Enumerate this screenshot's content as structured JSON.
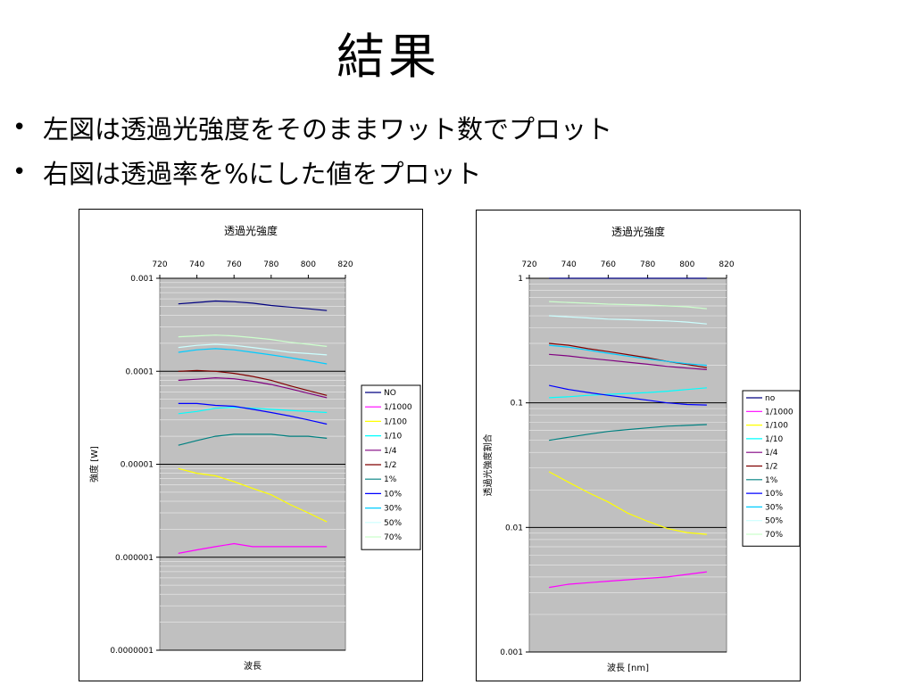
{
  "slide": {
    "title": "結果",
    "bullets": [
      "左図は透過光強度をそのままワット数でプロット",
      "右図は透過率を%にした値をプロット"
    ]
  },
  "colors": {
    "plot_bg": "#c0c0c0",
    "gridline_minor": "#e4e4e4",
    "gridline_major": "#000000",
    "series": {
      "NO": "#000080",
      "1/1000": "#ff00ff",
      "1/100": "#ffff00",
      "1/10": "#00ffff",
      "1/4": "#800080",
      "1/2": "#800000",
      "1%": "#008080",
      "10%": "#0000ff",
      "30%": "#00ccff",
      "50%": "#ccffff",
      "70%": "#ccffcc"
    }
  },
  "chart_data": [
    {
      "type": "line",
      "title": "透過光強度",
      "xlabel": "波長",
      "ylabel": "強度 [W]",
      "x_position": "top",
      "xlim": [
        720,
        820
      ],
      "xticks": [
        "720",
        "740",
        "760",
        "780",
        "800",
        "820"
      ],
      "y_scale": "log",
      "ylim": [
        1e-07,
        0.001
      ],
      "yticks": [
        "0.001",
        "0.0001",
        "0.00001",
        "0.000001",
        "0.0000001"
      ],
      "grid": true,
      "legend": "right",
      "series": [
        {
          "name": "NO",
          "x": [
            730,
            740,
            750,
            760,
            770,
            780,
            790,
            800,
            810
          ],
          "values": [
            0.00053,
            0.00055,
            0.00057,
            0.00056,
            0.00054,
            0.00051,
            0.00049,
            0.00047,
            0.00045
          ]
        },
        {
          "name": "1/1000",
          "x": [
            730,
            740,
            750,
            760,
            770,
            780,
            790,
            800,
            810
          ],
          "values": [
            1.1e-06,
            1.2e-06,
            1.3e-06,
            1.4e-06,
            1.3e-06,
            1.3e-06,
            1.3e-06,
            1.3e-06,
            1.3e-06
          ]
        },
        {
          "name": "1/100",
          "x": [
            730,
            740,
            750,
            760,
            770,
            780,
            790,
            800,
            810
          ],
          "values": [
            9e-06,
            8e-06,
            7.5e-06,
            6.5e-06,
            5.5e-06,
            4.7e-06,
            3.7e-06,
            3e-06,
            2.4e-06
          ]
        },
        {
          "name": "1/10",
          "x": [
            730,
            740,
            750,
            760,
            770,
            780,
            790,
            800,
            810
          ],
          "values": [
            3.5e-05,
            3.7e-05,
            4e-05,
            4.1e-05,
            4e-05,
            3.9e-05,
            3.8e-05,
            3.7e-05,
            3.6e-05
          ]
        },
        {
          "name": "1/4",
          "x": [
            730,
            740,
            750,
            760,
            770,
            780,
            790,
            800,
            810
          ],
          "values": [
            8e-05,
            8.2e-05,
            8.5e-05,
            8.3e-05,
            7.8e-05,
            7.2e-05,
            6.5e-05,
            5.8e-05,
            5.2e-05
          ]
        },
        {
          "name": "1/2",
          "x": [
            730,
            740,
            750,
            760,
            770,
            780,
            790,
            800,
            810
          ],
          "values": [
            0.0001,
            0.000102,
            0.0001,
            9.5e-05,
            8.8e-05,
            8e-05,
            7e-05,
            6.2e-05,
            5.5e-05
          ]
        },
        {
          "name": "1%",
          "x": [
            730,
            740,
            750,
            760,
            770,
            780,
            790,
            800,
            810
          ],
          "values": [
            1.6e-05,
            1.8e-05,
            2e-05,
            2.1e-05,
            2.1e-05,
            2.1e-05,
            2e-05,
            2e-05,
            1.9e-05
          ]
        },
        {
          "name": "10%",
          "x": [
            730,
            740,
            750,
            760,
            770,
            780,
            790,
            800,
            810
          ],
          "values": [
            4.5e-05,
            4.5e-05,
            4.3e-05,
            4.2e-05,
            3.9e-05,
            3.6e-05,
            3.3e-05,
            3e-05,
            2.7e-05
          ]
        },
        {
          "name": "30%",
          "x": [
            730,
            740,
            750,
            760,
            770,
            780,
            790,
            800,
            810
          ],
          "values": [
            0.00016,
            0.00017,
            0.000175,
            0.00017,
            0.00016,
            0.00015,
            0.00014,
            0.00013,
            0.00012
          ]
        },
        {
          "name": "50%",
          "x": [
            730,
            740,
            750,
            760,
            770,
            780,
            790,
            800,
            810
          ],
          "values": [
            0.00018,
            0.00019,
            0.000195,
            0.00019,
            0.00018,
            0.00017,
            0.00016,
            0.000155,
            0.00015
          ]
        },
        {
          "name": "70%",
          "x": [
            730,
            740,
            750,
            760,
            770,
            780,
            790,
            800,
            810
          ],
          "values": [
            0.000235,
            0.00024,
            0.000245,
            0.00024,
            0.00023,
            0.00022,
            0.000205,
            0.000195,
            0.000185
          ]
        }
      ]
    },
    {
      "type": "line",
      "title": "透過光強度",
      "xlabel": "波長 [nm]",
      "ylabel": "透過光強度割合",
      "x_position": "top",
      "xlim": [
        720,
        820
      ],
      "xticks": [
        "720",
        "740",
        "760",
        "780",
        "800",
        "820"
      ],
      "y_scale": "log",
      "ylim": [
        0.001,
        1
      ],
      "yticks": [
        "1",
        "0.1",
        "0.01",
        "0.001"
      ],
      "grid": true,
      "legend": "right",
      "series": [
        {
          "name": "no",
          "x": [
            730,
            740,
            750,
            760,
            770,
            780,
            790,
            800,
            810
          ],
          "values": [
            1,
            1,
            1,
            1,
            1,
            1,
            1,
            1,
            1
          ]
        },
        {
          "name": "1/1000",
          "x": [
            730,
            740,
            750,
            760,
            770,
            780,
            790,
            800,
            810
          ],
          "values": [
            0.0033,
            0.0035,
            0.0036,
            0.0037,
            0.0038,
            0.0039,
            0.004,
            0.0042,
            0.0044
          ]
        },
        {
          "name": "1/100",
          "x": [
            730,
            740,
            750,
            760,
            770,
            780,
            790,
            800,
            810
          ],
          "values": [
            0.028,
            0.023,
            0.019,
            0.016,
            0.013,
            0.0112,
            0.0098,
            0.0091,
            0.0088
          ]
        },
        {
          "name": "1/10",
          "x": [
            730,
            740,
            750,
            760,
            770,
            780,
            790,
            800,
            810
          ],
          "values": [
            0.11,
            0.112,
            0.115,
            0.117,
            0.119,
            0.121,
            0.124,
            0.128,
            0.132
          ]
        },
        {
          "name": "1/4",
          "x": [
            730,
            740,
            750,
            760,
            770,
            780,
            790,
            800,
            810
          ],
          "values": [
            0.245,
            0.238,
            0.228,
            0.22,
            0.212,
            0.204,
            0.196,
            0.19,
            0.185
          ]
        },
        {
          "name": "1/2",
          "x": [
            730,
            740,
            750,
            760,
            770,
            780,
            790,
            800,
            810
          ],
          "values": [
            0.3,
            0.29,
            0.272,
            0.258,
            0.244,
            0.23,
            0.215,
            0.203,
            0.192
          ]
        },
        {
          "name": "1%",
          "x": [
            730,
            740,
            750,
            760,
            770,
            780,
            790,
            800,
            810
          ],
          "values": [
            0.05,
            0.053,
            0.056,
            0.059,
            0.061,
            0.063,
            0.065,
            0.066,
            0.067
          ]
        },
        {
          "name": "10%",
          "x": [
            730,
            740,
            750,
            760,
            770,
            780,
            790,
            800,
            810
          ],
          "values": [
            0.138,
            0.128,
            0.121,
            0.115,
            0.11,
            0.105,
            0.1,
            0.097,
            0.096
          ]
        },
        {
          "name": "30%",
          "x": [
            730,
            740,
            750,
            760,
            770,
            780,
            790,
            800,
            810
          ],
          "values": [
            0.29,
            0.28,
            0.265,
            0.25,
            0.237,
            0.225,
            0.215,
            0.206,
            0.2
          ]
        },
        {
          "name": "50%",
          "x": [
            730,
            740,
            750,
            760,
            770,
            780,
            790,
            800,
            810
          ],
          "values": [
            0.5,
            0.49,
            0.48,
            0.47,
            0.465,
            0.46,
            0.455,
            0.445,
            0.43
          ]
        },
        {
          "name": "70%",
          "x": [
            730,
            740,
            750,
            760,
            770,
            780,
            790,
            800,
            810
          ],
          "values": [
            0.65,
            0.64,
            0.63,
            0.62,
            0.615,
            0.61,
            0.6,
            0.59,
            0.57
          ]
        }
      ]
    }
  ]
}
